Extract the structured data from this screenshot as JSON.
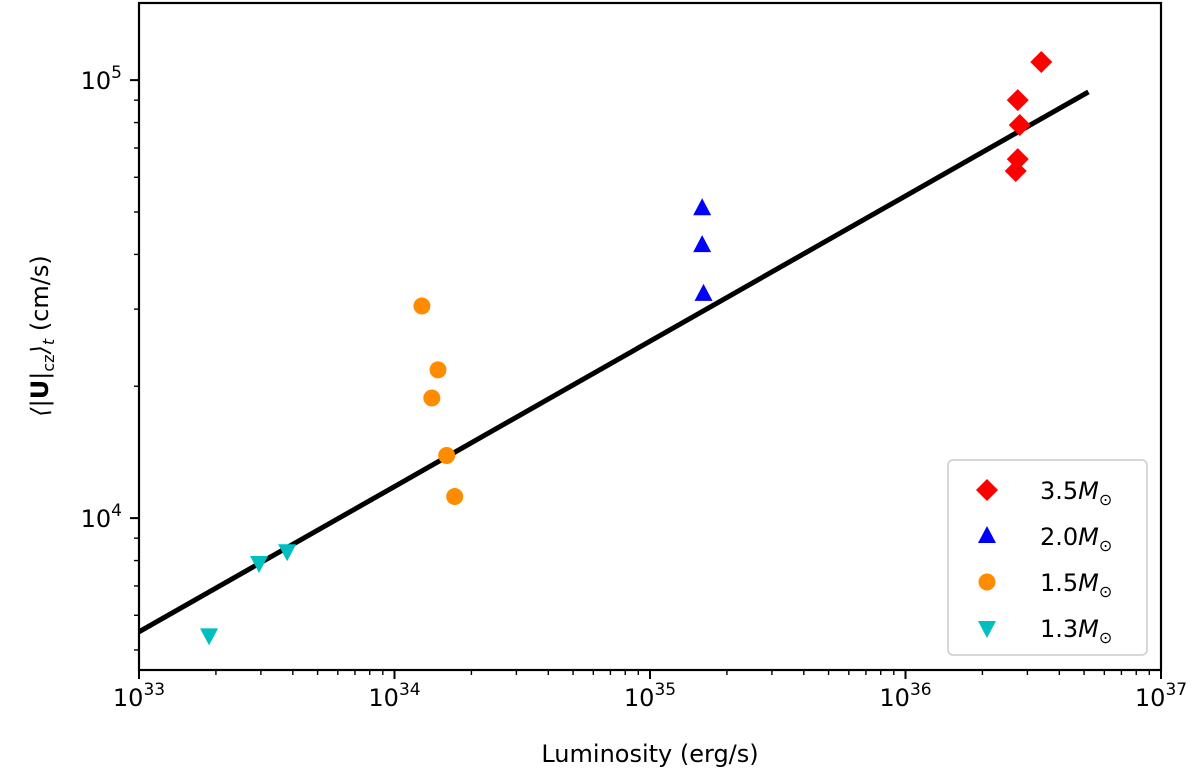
{
  "chart_data": {
    "type": "scatter",
    "title": "",
    "xlabel": "Luminosity (erg/s)",
    "ylabel": "(cm/s)",
    "ylabel_math": "⟨|U|cz⟩t",
    "xscale": "log",
    "yscale": "log",
    "xlim": [
      1e+33,
      1e+37
    ],
    "ylim": [
      4500,
      150000
    ],
    "x_ticks": [
      {
        "value": 1e+33,
        "base": "10",
        "exp": "33"
      },
      {
        "value": 1e+34,
        "base": "10",
        "exp": "34"
      },
      {
        "value": 1e+35,
        "base": "10",
        "exp": "35"
      },
      {
        "value": 1e+36,
        "base": "10",
        "exp": "36"
      },
      {
        "value": 1e+37,
        "base": "10",
        "exp": "37"
      }
    ],
    "y_ticks": [
      {
        "value": 10000.0,
        "base": "10",
        "exp": "4"
      },
      {
        "value": 100000.0,
        "base": "10",
        "exp": "5"
      }
    ],
    "legend_position": "lower-right",
    "fit_line": {
      "x": [
        1e+33,
        5.2e+36
      ],
      "y": [
        5500,
        94000
      ],
      "color": "#000000"
    },
    "series": [
      {
        "name": "3.5",
        "name_suffix": "M",
        "name_sub": "⊙",
        "marker": "diamond",
        "color": "#ff0000",
        "points": [
          [
            3.4e+36,
            110000
          ],
          [
            2.75e+36,
            90000
          ],
          [
            2.8e+36,
            79000
          ],
          [
            2.75e+36,
            66000
          ],
          [
            2.7e+36,
            62000
          ]
        ]
      },
      {
        "name": "2.0",
        "name_suffix": "M",
        "name_sub": "⊙",
        "marker": "triangle-up",
        "color": "#0000ff",
        "points": [
          [
            1.6e+35,
            51000
          ],
          [
            1.6e+35,
            42000
          ],
          [
            1.62e+35,
            32500
          ]
        ]
      },
      {
        "name": "1.5",
        "name_suffix": "M",
        "name_sub": "⊙",
        "marker": "circle",
        "color": "#ff8c00",
        "points": [
          [
            1.28e+34,
            30500
          ],
          [
            1.48e+34,
            21800
          ],
          [
            1.4e+34,
            18800
          ],
          [
            1.6e+34,
            13900
          ],
          [
            1.72e+34,
            11200
          ]
        ]
      },
      {
        "name": "1.3",
        "name_suffix": "M",
        "name_sub": "⊙",
        "marker": "triangle-down",
        "color": "#00bfbf",
        "points": [
          [
            1.88e+33,
            5400
          ],
          [
            2.95e+33,
            7900
          ],
          [
            3.8e+33,
            8400
          ]
        ]
      }
    ]
  }
}
